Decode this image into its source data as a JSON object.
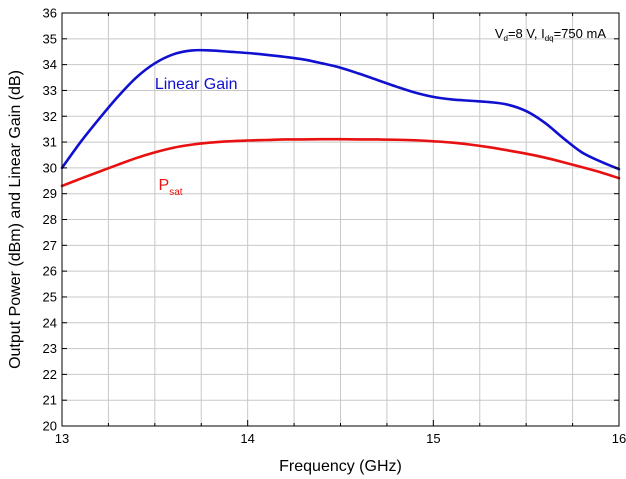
{
  "chart_data": {
    "type": "line",
    "title": "",
    "xlabel": "Frequency (GHz)",
    "ylabel": "Output Power (dBm) and Linear Gain (dB)",
    "xlim": [
      13,
      16
    ],
    "ylim": [
      20,
      36
    ],
    "x_ticks": [
      "13",
      "14",
      "15",
      "16"
    ],
    "x_minor_step": 0.25,
    "y_ticks": [
      "20",
      "21",
      "22",
      "23",
      "24",
      "25",
      "26",
      "27",
      "28",
      "29",
      "30",
      "31",
      "32",
      "33",
      "34",
      "35",
      "36"
    ],
    "grid": true,
    "annotation": {
      "base": "V",
      "sub1": "d",
      "mid": "=8 V, I",
      "sub2": "dq",
      "end": "=750 mA"
    },
    "series": [
      {
        "name": "Linear Gain",
        "color": "#1010d0",
        "x": [
          13.0,
          13.1,
          13.2,
          13.3,
          13.4,
          13.5,
          13.6,
          13.7,
          13.8,
          13.9,
          14.0,
          14.1,
          14.2,
          14.3,
          14.4,
          14.5,
          14.6,
          14.7,
          14.8,
          14.9,
          15.0,
          15.1,
          15.2,
          15.3,
          15.4,
          15.5,
          15.6,
          15.7,
          15.8,
          15.9,
          16.0
        ],
        "y": [
          30.0,
          31.0,
          31.9,
          32.75,
          33.5,
          34.05,
          34.4,
          34.55,
          34.55,
          34.5,
          34.45,
          34.38,
          34.3,
          34.2,
          34.05,
          33.88,
          33.65,
          33.4,
          33.15,
          32.92,
          32.75,
          32.65,
          32.6,
          32.55,
          32.45,
          32.2,
          31.75,
          31.15,
          30.6,
          30.25,
          29.95
        ],
        "label": {
          "text": "Linear Gain",
          "x": 13.5,
          "y": 33.05
        }
      },
      {
        "name": "P",
        "name_sub": "sat",
        "color": "#e81010",
        "x": [
          13.0,
          13.1,
          13.2,
          13.3,
          13.4,
          13.5,
          13.6,
          13.7,
          13.8,
          13.9,
          14.0,
          14.1,
          14.2,
          14.3,
          14.4,
          14.5,
          14.6,
          14.7,
          14.8,
          14.9,
          15.0,
          15.1,
          15.2,
          15.3,
          15.4,
          15.5,
          15.6,
          15.7,
          15.8,
          15.9,
          16.0
        ],
        "y": [
          29.3,
          29.58,
          29.85,
          30.12,
          30.38,
          30.6,
          30.78,
          30.9,
          30.98,
          31.03,
          31.06,
          31.08,
          31.1,
          31.1,
          31.11,
          31.11,
          31.1,
          31.1,
          31.09,
          31.07,
          31.03,
          30.98,
          30.9,
          30.8,
          30.68,
          30.55,
          30.4,
          30.22,
          30.03,
          29.83,
          29.6
        ],
        "label": {
          "text": "P",
          "sub": "sat",
          "x": 13.52,
          "y": 29.15
        }
      }
    ]
  }
}
